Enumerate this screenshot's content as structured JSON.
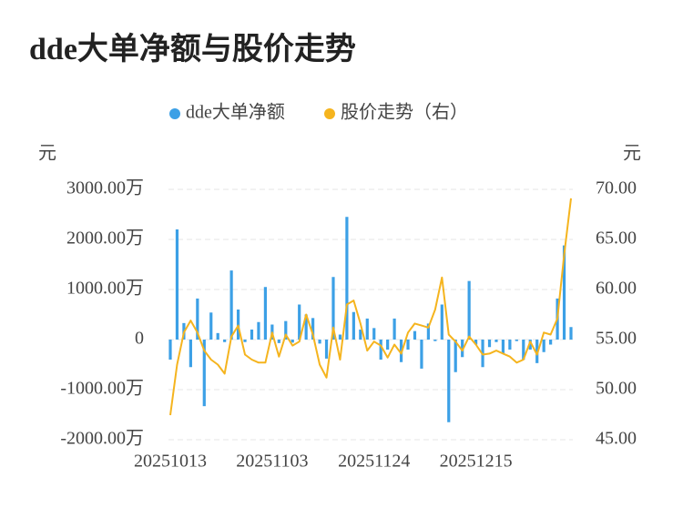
{
  "chart_data": {
    "type": "bar_line",
    "title": "dde大单净额与股价走势",
    "y_label": "元",
    "y2_label": "元",
    "categories": [
      "20251013",
      null,
      null,
      null,
      null,
      null,
      null,
      null,
      null,
      null,
      null,
      null,
      null,
      null,
      null,
      "20251103",
      null,
      null,
      null,
      null,
      null,
      null,
      null,
      null,
      null,
      null,
      null,
      null,
      null,
      null,
      "20251124",
      null,
      null,
      null,
      null,
      null,
      null,
      null,
      null,
      null,
      null,
      null,
      null,
      null,
      null,
      "20251215",
      null,
      null,
      null,
      null,
      null,
      null,
      null,
      null,
      null,
      null,
      null,
      null,
      null,
      null
    ],
    "series": [
      {
        "name": "dde大单净额",
        "type": "bar",
        "color": "#3ca0e6",
        "values": [
          -400,
          2200,
          330,
          -550,
          820,
          -1330,
          540,
          130,
          -50,
          1380,
          600,
          -50,
          200,
          350,
          1050,
          300,
          -70,
          370,
          -60,
          700,
          500,
          430,
          -80,
          -380,
          1250,
          100,
          2450,
          550,
          200,
          420,
          230,
          -400,
          -200,
          420,
          -450,
          -200,
          170,
          -580,
          320,
          -30,
          700,
          -1650,
          -650,
          -350,
          1170,
          -100,
          -550,
          -150,
          -50,
          -280,
          -200,
          -30,
          -400,
          -200,
          -470,
          -250,
          -100,
          820,
          1880,
          250
        ]
      },
      {
        "name": "股价走势（右）",
        "type": "line",
        "axis": "y2",
        "color": "#f5b41e",
        "values": [
          47.45,
          52.5,
          55.7,
          56.9,
          55.7,
          53.9,
          53.0,
          52.5,
          51.6,
          55.3,
          56.4,
          53.5,
          53.0,
          52.7,
          52.7,
          55.7,
          53.3,
          55.5,
          54.4,
          54.8,
          57.5,
          55.5,
          52.5,
          51.2,
          56.2,
          53.0,
          58.5,
          58.9,
          56.6,
          53.9,
          54.8,
          54.4,
          53.2,
          54.5,
          53.6,
          55.7,
          56.6,
          56.4,
          56.2,
          58.0,
          61.2,
          55.5,
          54.8,
          53.9,
          55.3,
          54.5,
          53.5,
          53.6,
          53.9,
          53.6,
          53.3,
          52.7,
          53.0,
          54.8,
          53.5,
          55.7,
          55.5,
          57.1,
          63.5,
          69.1
        ]
      }
    ],
    "ylim": [
      -2000,
      3000
    ],
    "yticks": [
      {
        "value": -2000,
        "label": "-2000.00万"
      },
      {
        "value": -1000,
        "label": "-1000.00万"
      },
      0,
      {
        "value": 1000,
        "label": "1000.00万"
      },
      {
        "value": 2000,
        "label": "2000.00万"
      },
      {
        "value": 3000,
        "label": "3000.00万"
      }
    ],
    "y2lim": [
      45,
      70
    ],
    "y2ticks": [
      {
        "value": 45,
        "label": "45.00"
      },
      {
        "value": 50,
        "label": "50.00"
      },
      {
        "value": 55,
        "label": "55.00"
      },
      {
        "value": 60,
        "label": "60.00"
      },
      {
        "value": 65,
        "label": "65.00"
      },
      {
        "value": 70,
        "label": "70.00"
      }
    ],
    "grid": true,
    "legend": "top"
  }
}
